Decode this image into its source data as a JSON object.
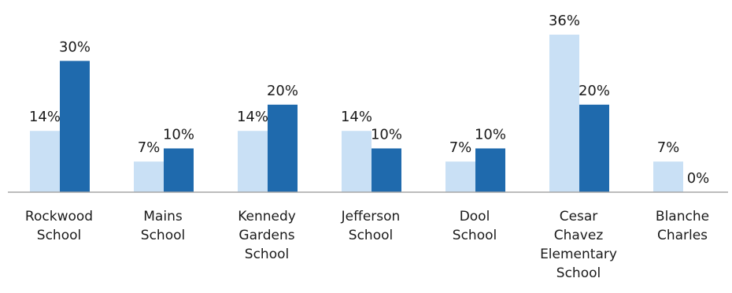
{
  "chart_data": {
    "type": "bar",
    "categories": [
      [
        "Rockwood",
        "School"
      ],
      [
        "Mains",
        "School"
      ],
      [
        "Kennedy",
        "Gardens",
        "School"
      ],
      [
        "Jefferson",
        "School"
      ],
      [
        "Dool",
        "School"
      ],
      [
        "Cesar",
        "Chavez",
        "Elementary",
        "School"
      ],
      [
        "Blanche",
        "Charles"
      ]
    ],
    "series": [
      {
        "color": "#c9e0f5",
        "values": [
          14,
          7,
          14,
          14,
          7,
          36,
          7
        ],
        "labels": [
          "14%",
          "7%",
          "14%",
          "14%",
          "7%",
          "36%",
          "7%"
        ]
      },
      {
        "color": "#1f6aad",
        "values": [
          30,
          10,
          20,
          10,
          10,
          20,
          0
        ],
        "labels": [
          "30%",
          "10%",
          "20%",
          "10%",
          "10%",
          "20%",
          "0%"
        ]
      }
    ],
    "ylim": [
      0,
      36
    ],
    "grid": false,
    "legend": "none",
    "title": "",
    "xlabel": "",
    "ylabel": ""
  }
}
